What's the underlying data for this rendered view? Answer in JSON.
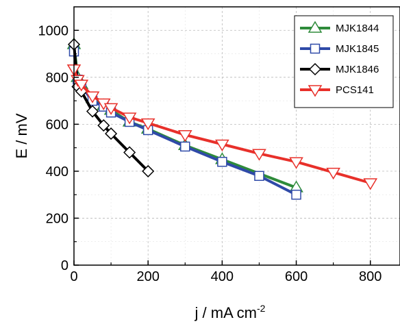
{
  "chart_data": {
    "type": "line",
    "xlabel": "j / mA cm",
    "xlabel_sup": "-2",
    "ylabel": "E / mV",
    "xlim": [
      0,
      880
    ],
    "ylim": [
      0,
      1100
    ],
    "xticks": [
      0,
      200,
      400,
      600,
      800
    ],
    "yticks": [
      0,
      200,
      400,
      600,
      800,
      1000
    ],
    "grid": true,
    "legend_position": "top-right",
    "series": [
      {
        "name": "MJK1844",
        "color": "#2e8b3a",
        "marker": "triangle-up",
        "points": [
          [
            0,
            940
          ],
          [
            10,
            800
          ],
          [
            20,
            770
          ],
          [
            50,
            710
          ],
          [
            80,
            680
          ],
          [
            100,
            660
          ],
          [
            150,
            610
          ],
          [
            200,
            580
          ],
          [
            300,
            510
          ],
          [
            400,
            450
          ],
          [
            600,
            330
          ]
        ]
      },
      {
        "name": "MJK1845",
        "color": "#2f4aa8",
        "marker": "square",
        "points": [
          [
            0,
            910
          ],
          [
            10,
            790
          ],
          [
            20,
            760
          ],
          [
            50,
            700
          ],
          [
            80,
            675
          ],
          [
            100,
            650
          ],
          [
            150,
            610
          ],
          [
            200,
            575
          ],
          [
            300,
            505
          ],
          [
            400,
            440
          ],
          [
            500,
            380
          ],
          [
            600,
            300
          ]
        ]
      },
      {
        "name": "MJK1846",
        "color": "#000000",
        "marker": "diamond",
        "points": [
          [
            0,
            940
          ],
          [
            10,
            760
          ],
          [
            20,
            740
          ],
          [
            50,
            655
          ],
          [
            80,
            595
          ],
          [
            100,
            560
          ],
          [
            150,
            480
          ],
          [
            200,
            400
          ]
        ]
      },
      {
        "name": "PCS141",
        "color": "#e8302a",
        "marker": "triangle-down",
        "points": [
          [
            0,
            835
          ],
          [
            10,
            790
          ],
          [
            20,
            770
          ],
          [
            50,
            720
          ],
          [
            80,
            690
          ],
          [
            100,
            670
          ],
          [
            150,
            630
          ],
          [
            200,
            605
          ],
          [
            300,
            555
          ],
          [
            400,
            515
          ],
          [
            500,
            475
          ],
          [
            600,
            440
          ],
          [
            700,
            395
          ],
          [
            800,
            350
          ]
        ]
      }
    ]
  }
}
